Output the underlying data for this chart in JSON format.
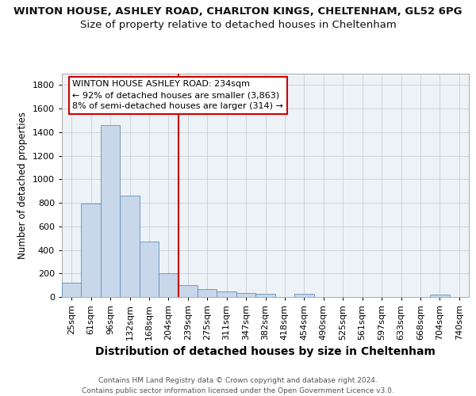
{
  "title_line1": "WINTON HOUSE, ASHLEY ROAD, CHARLTON KINGS, CHELTENHAM, GL52 6PG",
  "title_line2": "Size of property relative to detached houses in Cheltenham",
  "xlabel": "Distribution of detached houses by size in Cheltenham",
  "ylabel": "Number of detached properties",
  "bar_labels": [
    "25sqm",
    "61sqm",
    "96sqm",
    "132sqm",
    "168sqm",
    "204sqm",
    "239sqm",
    "275sqm",
    "311sqm",
    "347sqm",
    "382sqm",
    "418sqm",
    "454sqm",
    "490sqm",
    "525sqm",
    "561sqm",
    "597sqm",
    "633sqm",
    "668sqm",
    "704sqm",
    "740sqm"
  ],
  "bar_values": [
    120,
    795,
    1460,
    862,
    472,
    200,
    100,
    65,
    45,
    35,
    30,
    0,
    25,
    0,
    0,
    0,
    0,
    0,
    0,
    20,
    0
  ],
  "bar_color": "#c8d8ea",
  "bar_edgecolor": "#6090b8",
  "vline_color": "#cc0000",
  "vline_position": 5.5,
  "annotation_text": "WINTON HOUSE ASHLEY ROAD: 234sqm\n← 92% of detached houses are smaller (3,863)\n8% of semi-detached houses are larger (314) →",
  "annotation_box_edgecolor": "#cc0000",
  "ylim": [
    0,
    1900
  ],
  "yticks": [
    0,
    200,
    400,
    600,
    800,
    1000,
    1200,
    1400,
    1600,
    1800
  ],
  "grid_color": "#c5cdd8",
  "plot_bg_color": "#edf2f7",
  "footer_text": "Contains HM Land Registry data © Crown copyright and database right 2024.\nContains public sector information licensed under the Open Government Licence v3.0.",
  "title1_fontsize": 9.5,
  "title2_fontsize": 9.5,
  "xlabel_fontsize": 10,
  "ylabel_fontsize": 8.5,
  "tick_fontsize": 8,
  "annotation_fontsize": 8,
  "footer_fontsize": 6.5
}
